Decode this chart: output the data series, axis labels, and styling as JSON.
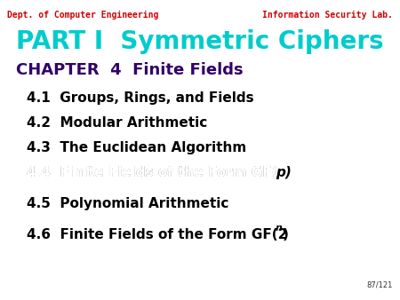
{
  "bg_color": "#ffffff",
  "header_left": "Dept. of Computer Engineering",
  "header_left_color": "#cc0000",
  "header_right": "Information Security Lab.",
  "header_right_color": "#cc0000",
  "part_title": "PART I  Symmetric Ciphers",
  "part_title_color": "#00cccc",
  "chapter_title": "CHAPTER  4  Finite Fields",
  "chapter_title_color": "#330066",
  "items_color": "#000000",
  "page_num": "87/121",
  "page_num_color": "#333333"
}
